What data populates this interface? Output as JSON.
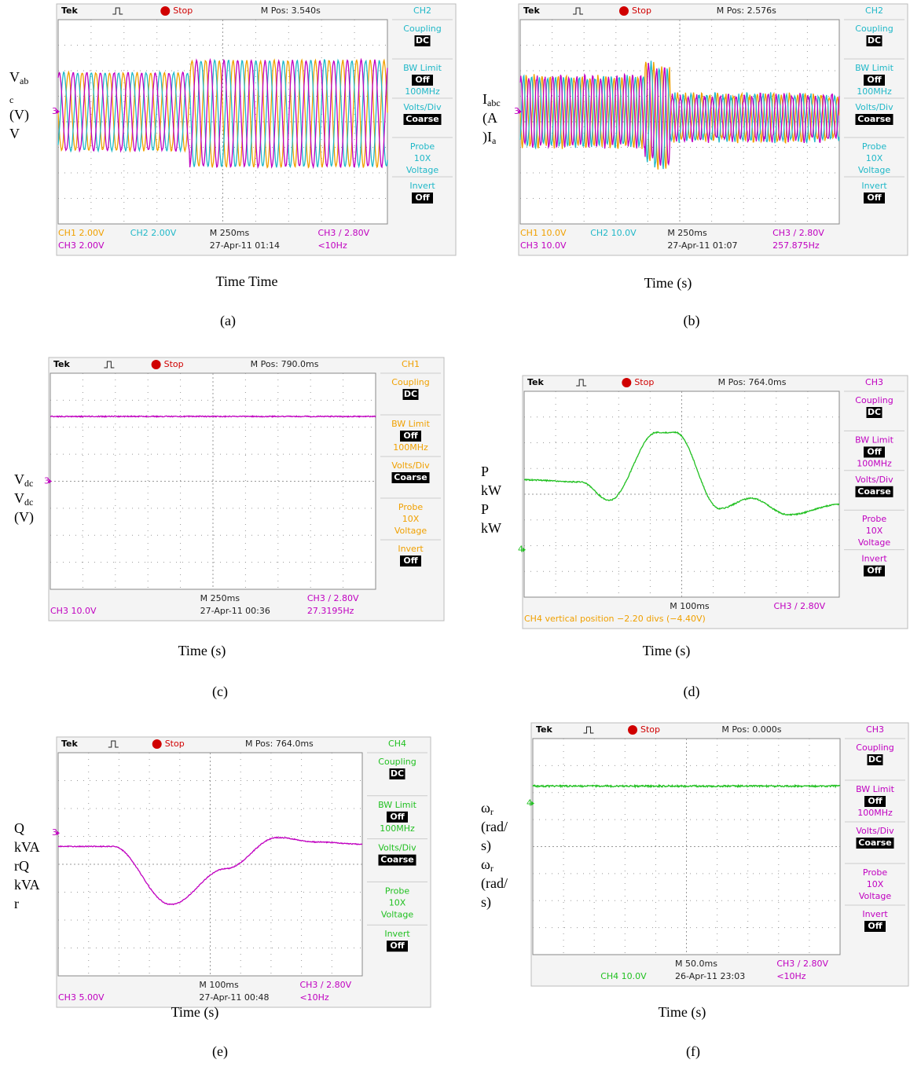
{
  "panels": [
    {
      "scope": {
        "brand": "Tek",
        "status": "Stop",
        "position": "M Pos: 3.540s",
        "channel": "CH2"
      },
      "menu_color": "#20b8c8",
      "menu": [
        [
          "Coupling",
          {
            "text": "DC",
            "boxed": true
          }
        ],
        [
          "BW Limit",
          {
            "text": "Off",
            "boxed": true
          },
          "100MHz"
        ],
        [
          "Volts/Div",
          {
            "text": "Coarse",
            "boxed": true
          }
        ],
        [
          "Probe",
          "10X",
          "Voltage"
        ],
        [
          "Invert",
          {
            "text": "Off",
            "boxed": true
          }
        ]
      ],
      "marker": "3",
      "trace_colors": [
        "#f0a000",
        "#20b8c8",
        "#c000c0"
      ],
      "readouts": [
        [
          {
            "text": "CH1  2.00V",
            "color": "#f0a000"
          },
          {
            "text": "CH2  2.00V",
            "color": "#20b8c8"
          },
          {
            "text": "M 250ms",
            "color": "#222222"
          },
          {
            "text": "CH3 / 2.80V",
            "color": "#c000c0"
          }
        ],
        [
          {
            "text": "CH3  2.00V",
            "color": "#c000c0"
          },
          null,
          {
            "text": "27-Apr-11 01:14",
            "color": "#222222"
          },
          {
            "text": "<10Hz",
            "color": "#c000c0"
          }
        ]
      ],
      "y_label": [
        {
          "text": "V",
          "sub": "ab"
        },
        {
          "sub": "c"
        },
        {
          "text": "(V)"
        },
        {
          "text": "V"
        }
      ],
      "x_label": "Time Time",
      "caption": "(a)"
    },
    {
      "scope": {
        "brand": "Tek",
        "status": "Stop",
        "position": "M Pos: 2.576s",
        "channel": "CH2"
      },
      "menu_color": "#20b8c8",
      "menu": [
        [
          "Coupling",
          {
            "text": "DC",
            "boxed": true
          }
        ],
        [
          "BW Limit",
          {
            "text": "Off",
            "boxed": true
          },
          "100MHz"
        ],
        [
          "Volts/Div",
          {
            "text": "Coarse",
            "boxed": true
          }
        ],
        [
          "Probe",
          "10X",
          "Voltage"
        ],
        [
          "Invert",
          {
            "text": "Off",
            "boxed": true
          }
        ]
      ],
      "marker": "3",
      "trace_colors": [
        "#f0a000",
        "#20b8c8",
        "#c000c0"
      ],
      "readouts": [
        [
          {
            "text": "CH1  10.0V",
            "color": "#f0a000"
          },
          {
            "text": "CH2  10.0V",
            "color": "#20b8c8"
          },
          {
            "text": "M 250ms",
            "color": "#222222"
          },
          {
            "text": "CH3 / 2.80V",
            "color": "#c000c0"
          }
        ],
        [
          {
            "text": "CH3  10.0V",
            "color": "#c000c0"
          },
          null,
          {
            "text": "27-Apr-11 01:07",
            "color": "#222222"
          },
          {
            "text": "257.875Hz",
            "color": "#c000c0"
          }
        ]
      ],
      "y_label": [
        {
          "text": "I",
          "sub": "abc"
        },
        {
          "text": "(A"
        },
        {
          "text": ")I",
          "sub": "a"
        }
      ],
      "x_label": "Time (s)",
      "caption": "(b)"
    },
    {
      "scope": {
        "brand": "Tek",
        "status": "Stop",
        "position": "M Pos: 790.0ms",
        "channel": "CH1"
      },
      "menu_color": "#f0a000",
      "menu": [
        [
          "Coupling",
          {
            "text": "DC",
            "boxed": true
          }
        ],
        [
          "BW Limit",
          {
            "text": "Off",
            "boxed": true
          },
          "100MHz"
        ],
        [
          "Volts/Div",
          {
            "text": "Coarse",
            "boxed": true
          }
        ],
        [
          "Probe",
          "10X",
          "Voltage"
        ],
        [
          "Invert",
          {
            "text": "Off",
            "boxed": true
          }
        ]
      ],
      "marker": "3",
      "trace_colors": [
        "#c000c0"
      ],
      "readouts": [
        [
          null,
          null,
          {
            "text": "M 250ms",
            "color": "#222222"
          },
          {
            "text": "CH3 / 2.80V",
            "color": "#c000c0"
          }
        ],
        [
          {
            "text": "CH3  10.0V",
            "color": "#c000c0"
          },
          null,
          {
            "text": "27-Apr-11 00:36",
            "color": "#222222"
          },
          {
            "text": "27.3195Hz",
            "color": "#c000c0"
          }
        ]
      ],
      "y_label": [
        {
          "text": "V",
          "sub": "dc"
        },
        {
          "text": "V",
          "sub": "dc"
        },
        {
          "text": "(V)"
        }
      ],
      "x_label": "Time (s)",
      "caption": "(c)"
    },
    {
      "scope": {
        "brand": "Tek",
        "status": "Stop",
        "position": "M Pos: 764.0ms",
        "channel": "CH3"
      },
      "menu_color": "#c000c0",
      "menu": [
        [
          "Coupling",
          {
            "text": "DC",
            "boxed": true
          }
        ],
        [
          "BW Limit",
          {
            "text": "Off",
            "boxed": true
          },
          "100MHz"
        ],
        [
          "Volts/Div",
          {
            "text": "Coarse",
            "boxed": true
          }
        ],
        [
          "Probe",
          "10X",
          "Voltage"
        ],
        [
          "Invert",
          {
            "text": "Off",
            "boxed": true
          }
        ]
      ],
      "marker": "4",
      "trace_colors": [
        "#20c020"
      ],
      "readouts": [
        [
          null,
          null,
          {
            "text": "M 100ms",
            "color": "#222222"
          },
          {
            "text": "CH3 / 2.80V",
            "color": "#c000c0"
          }
        ],
        [
          {
            "text": "CH4 vertical position −2.20 divs (−4.40V)",
            "color": "#f0a000"
          }
        ]
      ],
      "y_label": [
        {
          "text": "P"
        },
        {
          "text": "kW"
        },
        {
          "text": "P"
        },
        {
          "text": "kW"
        }
      ],
      "x_label": "Time (s)",
      "caption": "(d)"
    },
    {
      "scope": {
        "brand": "Tek",
        "status": "Stop",
        "position": "M Pos: 764.0ms",
        "channel": "CH4"
      },
      "menu_color": "#20c020",
      "menu": [
        [
          "Coupling",
          {
            "text": "DC",
            "boxed": true
          }
        ],
        [
          "BW Limit",
          {
            "text": "Off",
            "boxed": true
          },
          "100MHz"
        ],
        [
          "Volts/Div",
          {
            "text": "Coarse",
            "boxed": true
          }
        ],
        [
          "Probe",
          "10X",
          "Voltage"
        ],
        [
          "Invert",
          {
            "text": "Off",
            "boxed": true
          }
        ]
      ],
      "marker": "3",
      "trace_colors": [
        "#c000c0"
      ],
      "readouts": [
        [
          null,
          null,
          {
            "text": "M 100ms",
            "color": "#222222"
          },
          {
            "text": "CH3 / 2.80V",
            "color": "#c000c0"
          }
        ],
        [
          {
            "text": "CH3  5.00V",
            "color": "#c000c0"
          },
          null,
          {
            "text": "27-Apr-11 00:48",
            "color": "#222222"
          },
          {
            "text": "<10Hz",
            "color": "#c000c0"
          }
        ]
      ],
      "y_label": [
        {
          "text": "Q"
        },
        {
          "text": "kVA"
        },
        {
          "text": "rQ"
        },
        {
          "text": "kVA"
        },
        {
          "text": "r"
        }
      ],
      "x_label": "Time (s)",
      "caption": "(e)"
    },
    {
      "scope": {
        "brand": "Tek",
        "status": "Stop",
        "position": "M Pos: 0.000s",
        "channel": "CH3"
      },
      "menu_color": "#c000c0",
      "menu": [
        [
          "Coupling",
          {
            "text": "DC",
            "boxed": true
          }
        ],
        [
          "BW Limit",
          {
            "text": "Off",
            "boxed": true
          },
          "100MHz"
        ],
        [
          "Volts/Div",
          {
            "text": "Coarse",
            "boxed": true
          }
        ],
        [
          "Probe",
          "10X",
          "Voltage"
        ],
        [
          "Invert",
          {
            "text": "Off",
            "boxed": true
          }
        ]
      ],
      "marker": "4",
      "trace_colors": [
        "#20c020"
      ],
      "readouts": [
        [
          null,
          null,
          {
            "text": "M 50.0ms",
            "color": "#222222"
          },
          {
            "text": "CH3 / 2.80V",
            "color": "#c000c0"
          }
        ],
        [
          null,
          {
            "text": "CH4  10.0V",
            "color": "#20c020"
          },
          {
            "text": "26-Apr-11 23:03",
            "color": "#222222"
          },
          {
            "text": "<10Hz",
            "color": "#c000c0"
          }
        ]
      ],
      "y_label": [
        {
          "text": "ω",
          "sub": "r"
        },
        {
          "text": "(rad/"
        },
        {
          "text": "s)"
        },
        {
          "text": "ω",
          "sub": "r"
        },
        {
          "text": "(rad/"
        },
        {
          "text": "s)"
        }
      ],
      "x_label": "Time (s)",
      "caption": "(f)"
    }
  ]
}
